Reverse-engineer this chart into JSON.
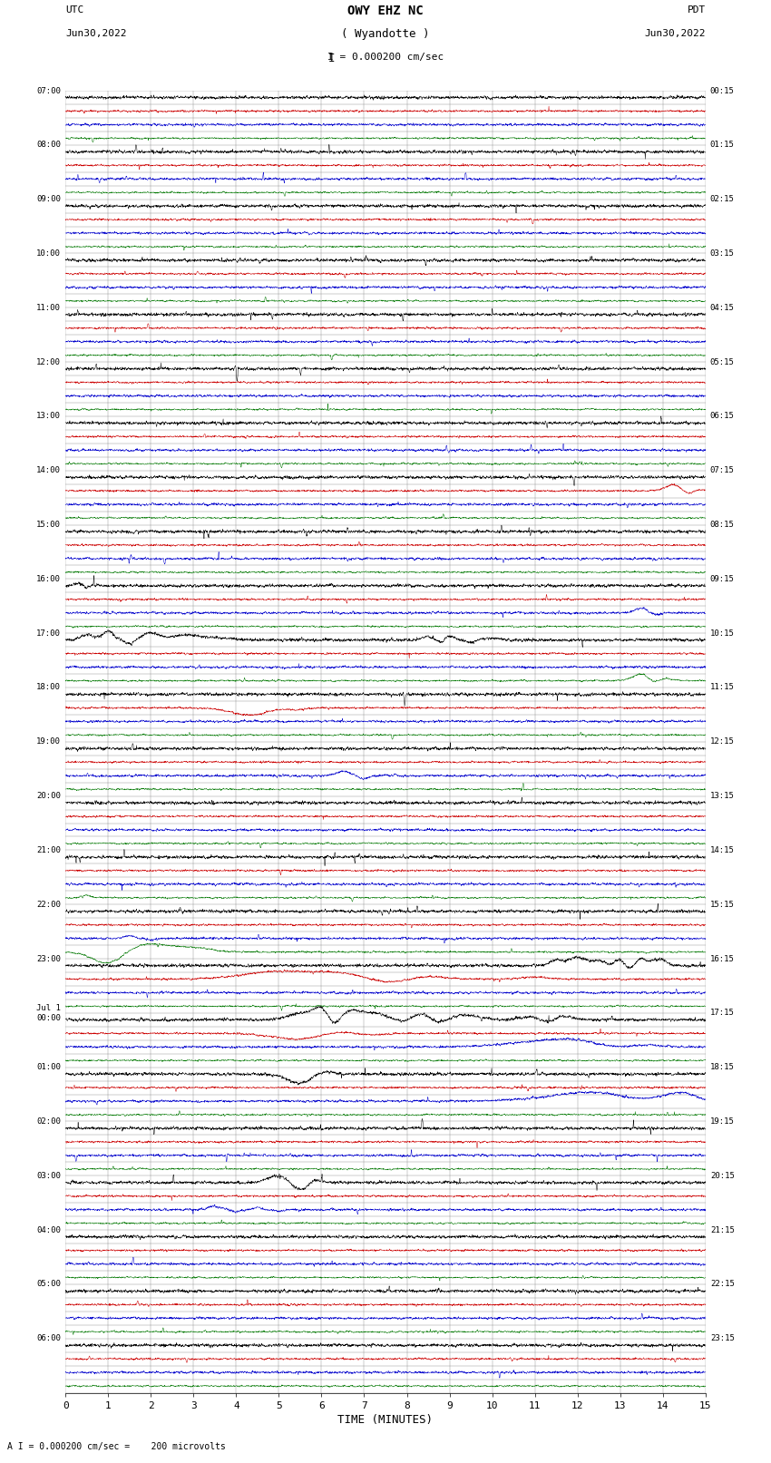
{
  "title_line1": "OWY EHZ NC",
  "title_line2": "( Wyandotte )",
  "scale_label": "I = 0.000200 cm/sec",
  "left_header_line1": "UTC",
  "left_header_line2": "Jun30,2022",
  "right_header_line1": "PDT",
  "right_header_line2": "Jun30,2022",
  "xlabel": "TIME (MINUTES)",
  "footnote": "A I = 0.000200 cm/sec =    200 microvolts",
  "xlim": [
    0,
    15
  ],
  "xticks": [
    0,
    1,
    2,
    3,
    4,
    5,
    6,
    7,
    8,
    9,
    10,
    11,
    12,
    13,
    14,
    15
  ],
  "bg_color": "#ffffff",
  "grid_color": "#888888",
  "trace_colors": [
    "#000000",
    "#cc0000",
    "#0000cc",
    "#007700"
  ],
  "left_labels": [
    "07:00",
    "",
    "",
    "",
    "08:00",
    "",
    "",
    "",
    "09:00",
    "",
    "",
    "",
    "10:00",
    "",
    "",
    "",
    "11:00",
    "",
    "",
    "",
    "12:00",
    "",
    "",
    "",
    "13:00",
    "",
    "",
    "",
    "14:00",
    "",
    "",
    "",
    "15:00",
    "",
    "",
    "",
    "16:00",
    "",
    "",
    "",
    "17:00",
    "",
    "",
    "",
    "18:00",
    "",
    "",
    "",
    "19:00",
    "",
    "",
    "",
    "20:00",
    "",
    "",
    "",
    "21:00",
    "",
    "",
    "",
    "22:00",
    "",
    "",
    "",
    "23:00",
    "",
    "",
    "",
    "Jul 1\n00:00",
    "",
    "",
    "",
    "01:00",
    "",
    "",
    "",
    "02:00",
    "",
    "",
    "",
    "03:00",
    "",
    "",
    "",
    "04:00",
    "",
    "",
    "",
    "05:00",
    "",
    "",
    "",
    "06:00",
    "",
    "",
    ""
  ],
  "right_labels": [
    "00:15",
    "",
    "",
    "",
    "01:15",
    "",
    "",
    "",
    "02:15",
    "",
    "",
    "",
    "03:15",
    "",
    "",
    "",
    "04:15",
    "",
    "",
    "",
    "05:15",
    "",
    "",
    "",
    "06:15",
    "",
    "",
    "",
    "07:15",
    "",
    "",
    "",
    "08:15",
    "",
    "",
    "",
    "09:15",
    "",
    "",
    "",
    "10:15",
    "",
    "",
    "",
    "11:15",
    "",
    "",
    "",
    "12:15",
    "",
    "",
    "",
    "13:15",
    "",
    "",
    "",
    "14:15",
    "",
    "",
    "",
    "15:15",
    "",
    "",
    "",
    "16:15",
    "",
    "",
    "",
    "17:15",
    "",
    "",
    "",
    "18:15",
    "",
    "",
    "",
    "19:15",
    "",
    "",
    "",
    "20:15",
    "",
    "",
    "",
    "21:15",
    "",
    "",
    "",
    "22:15",
    "",
    "",
    "",
    "23:15",
    "",
    "",
    ""
  ],
  "n_rows": 96,
  "fig_width": 8.5,
  "fig_height": 16.13,
  "dpi": 100,
  "noise_levels": [
    0.25,
    0.15,
    0.18,
    0.12
  ],
  "lw": 0.35
}
